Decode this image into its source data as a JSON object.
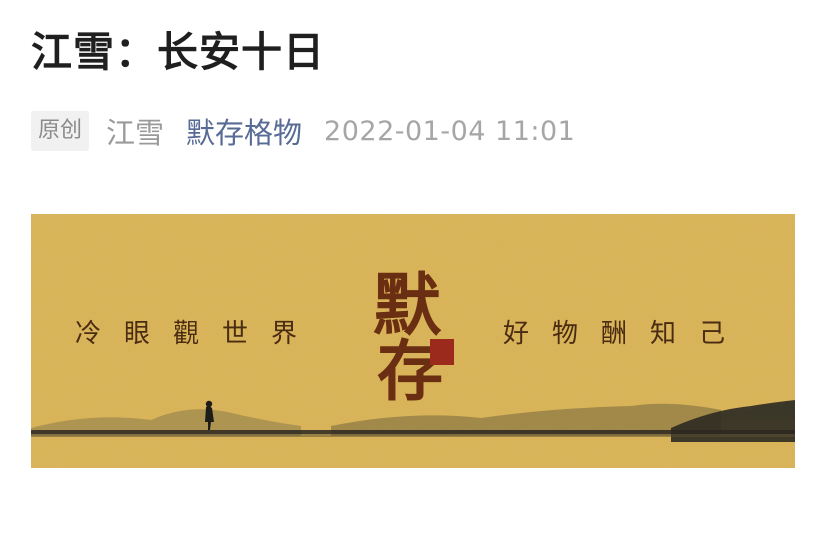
{
  "article": {
    "title": "江雪：长安十日"
  },
  "meta": {
    "badge": "原创",
    "author": "江雪",
    "account": "默存格物",
    "time": "2022-01-04 11:01"
  },
  "banner": {
    "slogan_left": "冷眼觀世界",
    "brand_char_1": "默",
    "brand_char_2": "存",
    "slogan_right": "好物酬知己",
    "colors": {
      "background": "#dcb659",
      "ink": "#4a2c12",
      "brand_ink": "#6a2e12",
      "seal": "#9c2a1c"
    }
  }
}
